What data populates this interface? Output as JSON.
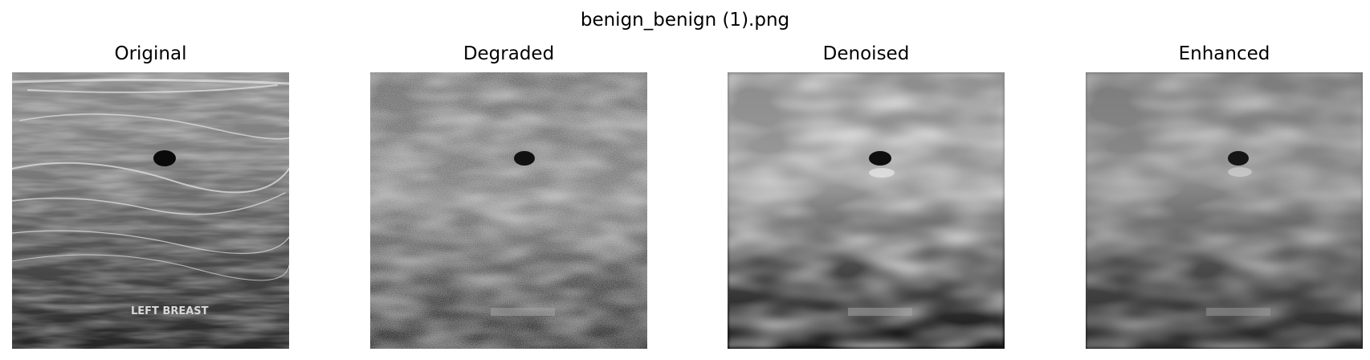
{
  "figure": {
    "title": "benign_benign (1).png"
  },
  "panels": [
    {
      "id": "original",
      "title": "Original",
      "overlay_text": "LEFT BREAST"
    },
    {
      "id": "degraded",
      "title": "Degraded"
    },
    {
      "id": "denoised",
      "title": "Denoised"
    },
    {
      "id": "enhanced",
      "title": "Enhanced"
    }
  ],
  "colors": {
    "background": "#ffffff",
    "text": "#000000"
  }
}
